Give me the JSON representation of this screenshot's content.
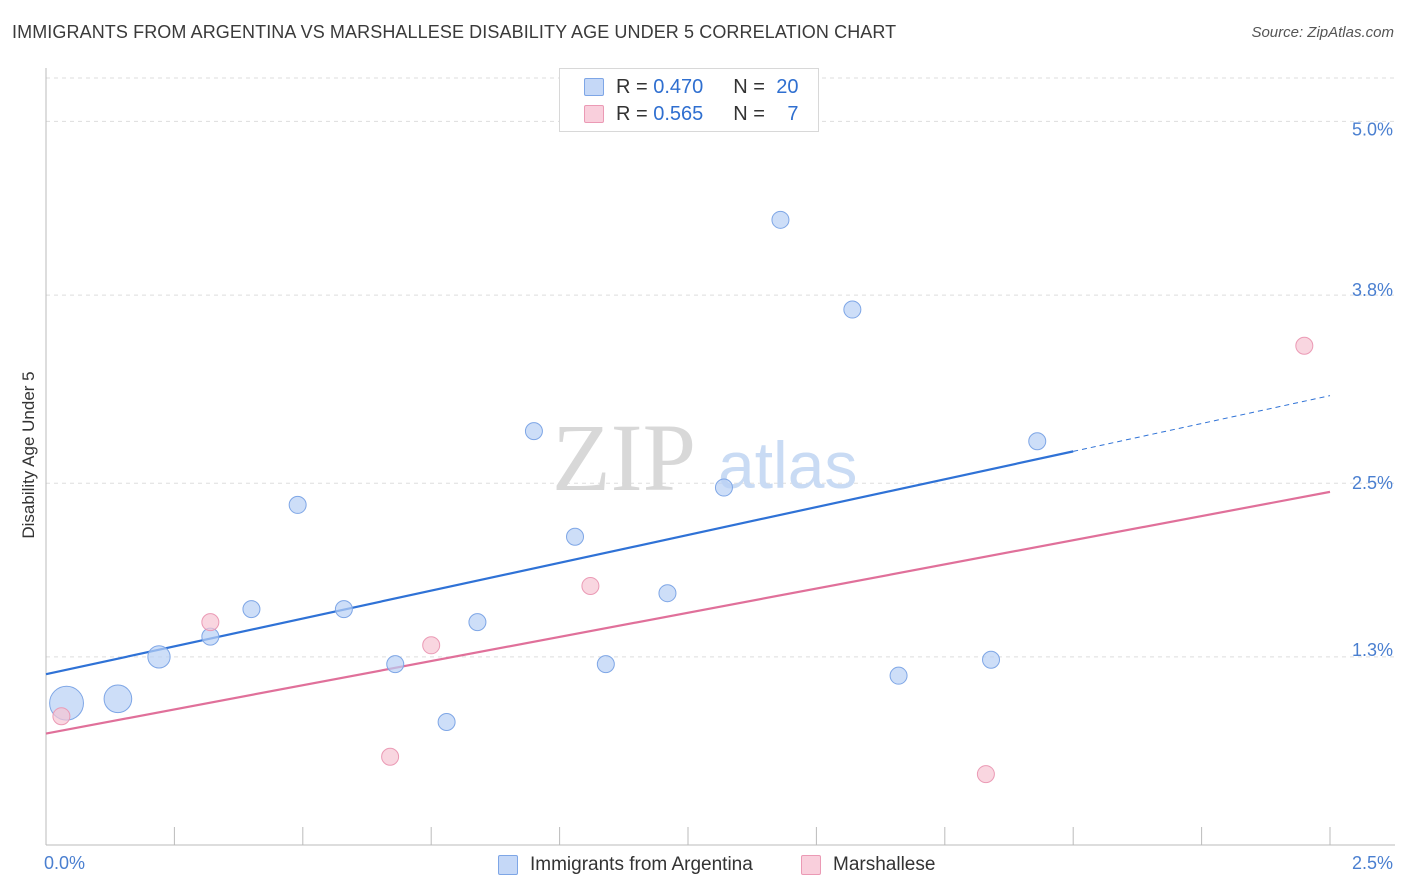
{
  "title": "IMMIGRANTS FROM ARGENTINA VS MARSHALLESE DISABILITY AGE UNDER 5 CORRELATION CHART",
  "source": "Source: ZipAtlas.com",
  "watermark": {
    "zip": "ZIP",
    "atlas": "atlas"
  },
  "colors": {
    "blue": "#2f72d6",
    "blue_fill": "#b8d0f5",
    "pink": "#e0709a",
    "pink_fill": "#f7c4d3",
    "grid": "#dddddd",
    "tick_text": "#4a7fd0"
  },
  "legend": {
    "rows": [
      {
        "r_label": "R = ",
        "r_value": "0.470",
        "n_label": "N = ",
        "n_value": "20"
      },
      {
        "r_label": "R = ",
        "r_value": "0.565",
        "n_label": "N = ",
        "n_value": "7"
      }
    ]
  },
  "bottom_legend": [
    "Immigrants from Argentina",
    "Marshallese"
  ],
  "chart_data": {
    "type": "scatter",
    "title": "IMMIGRANTS FROM ARGENTINA VS MARSHALLESE DISABILITY AGE UNDER 5 CORRELATION CHART",
    "xlabel": "",
    "ylabel": "Disability Age Under 5",
    "xlim": [
      0,
      2.5
    ],
    "ylim": [
      0,
      5.3
    ],
    "x_tick_labels": [
      "0.0%",
      "2.5%"
    ],
    "y_ticks": [
      1.3,
      2.5,
      3.8,
      5.0
    ],
    "y_tick_labels": [
      "1.3%",
      "2.5%",
      "3.8%",
      "5.0%"
    ],
    "grid": true,
    "series": [
      {
        "name": "Immigrants from Argentina",
        "color": "#2f72d6",
        "points": [
          {
            "x": 0.04,
            "y": 0.98,
            "size": 3
          },
          {
            "x": 0.14,
            "y": 1.01,
            "size": 2
          },
          {
            "x": 0.22,
            "y": 1.3,
            "size": 1.3
          },
          {
            "x": 0.32,
            "y": 1.44,
            "size": 1
          },
          {
            "x": 0.4,
            "y": 1.63,
            "size": 1
          },
          {
            "x": 0.49,
            "y": 2.35,
            "size": 1
          },
          {
            "x": 0.58,
            "y": 1.63,
            "size": 1
          },
          {
            "x": 0.68,
            "y": 1.25,
            "size": 1
          },
          {
            "x": 0.78,
            "y": 0.85,
            "size": 1
          },
          {
            "x": 0.84,
            "y": 1.54,
            "size": 1
          },
          {
            "x": 0.95,
            "y": 2.86,
            "size": 1
          },
          {
            "x": 1.03,
            "y": 2.13,
            "size": 1
          },
          {
            "x": 1.09,
            "y": 1.25,
            "size": 1
          },
          {
            "x": 1.21,
            "y": 1.74,
            "size": 1
          },
          {
            "x": 1.32,
            "y": 2.47,
            "size": 1
          },
          {
            "x": 1.43,
            "y": 4.32,
            "size": 1
          },
          {
            "x": 1.57,
            "y": 3.7,
            "size": 1
          },
          {
            "x": 1.66,
            "y": 1.17,
            "size": 1
          },
          {
            "x": 1.84,
            "y": 1.28,
            "size": 1
          },
          {
            "x": 1.93,
            "y": 2.79,
            "size": 1
          }
        ],
        "trend": {
          "x0": 0.0,
          "y0": 1.18,
          "x1": 2.0,
          "y1": 2.72,
          "dashed_to_x": 2.5
        }
      },
      {
        "name": "Marshallese",
        "color": "#e0709a",
        "points": [
          {
            "x": 0.03,
            "y": 0.89,
            "size": 1
          },
          {
            "x": 0.32,
            "y": 1.54,
            "size": 1
          },
          {
            "x": 0.67,
            "y": 0.61,
            "size": 1
          },
          {
            "x": 0.75,
            "y": 1.38,
            "size": 1
          },
          {
            "x": 1.06,
            "y": 1.79,
            "size": 1
          },
          {
            "x": 1.83,
            "y": 0.49,
            "size": 1
          },
          {
            "x": 2.45,
            "y": 3.45,
            "size": 1
          }
        ],
        "trend": {
          "x0": 0.0,
          "y0": 0.77,
          "x1": 2.5,
          "y1": 2.44
        }
      }
    ]
  }
}
